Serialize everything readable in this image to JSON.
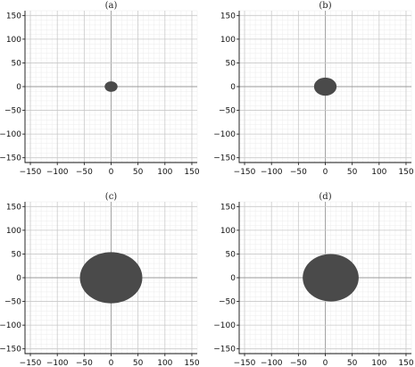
{
  "chart_data": [
    {
      "type": "scatter",
      "title": "(a)",
      "xlim": [
        -160,
        160
      ],
      "ylim": [
        -160,
        160
      ],
      "xticks": [
        -150,
        -100,
        -50,
        0,
        50,
        100,
        150
      ],
      "yticks": [
        150,
        100,
        50,
        0,
        -50,
        -100,
        -150
      ],
      "grid": true,
      "blob": {
        "cx": 0,
        "cy": 0,
        "rx": 12,
        "ry": 11
      },
      "fill_color": "#4a4a4a"
    },
    {
      "type": "scatter",
      "title": "(b)",
      "xlim": [
        -160,
        160
      ],
      "ylim": [
        -160,
        160
      ],
      "xticks": [
        -150,
        -100,
        -50,
        0,
        50,
        100,
        150
      ],
      "yticks": [
        150,
        100,
        50,
        0,
        -50,
        -100,
        -150
      ],
      "grid": true,
      "blob": {
        "cx": 0,
        "cy": 0,
        "rx": 21,
        "ry": 19
      },
      "fill_color": "#4a4a4a"
    },
    {
      "type": "scatter",
      "title": "(c)",
      "xlim": [
        -160,
        160
      ],
      "ylim": [
        -160,
        160
      ],
      "xticks": [
        -150,
        -100,
        -50,
        0,
        50,
        100,
        150
      ],
      "yticks": [
        150,
        100,
        50,
        0,
        -50,
        -100,
        -150
      ],
      "grid": true,
      "blob": {
        "cx": 0,
        "cy": 0,
        "rx": 58,
        "ry": 54
      },
      "fill_color": "#4a4a4a"
    },
    {
      "type": "scatter",
      "title": "(d)",
      "xlim": [
        -160,
        160
      ],
      "ylim": [
        -160,
        160
      ],
      "xticks": [
        -150,
        -100,
        -50,
        0,
        50,
        100,
        150
      ],
      "yticks": [
        150,
        100,
        50,
        0,
        -50,
        -100,
        -150
      ],
      "grid": true,
      "blob": {
        "cx": 10,
        "cy": 0,
        "rx": 52,
        "ry": 50
      },
      "fill_color": "#4a4a4a"
    }
  ]
}
